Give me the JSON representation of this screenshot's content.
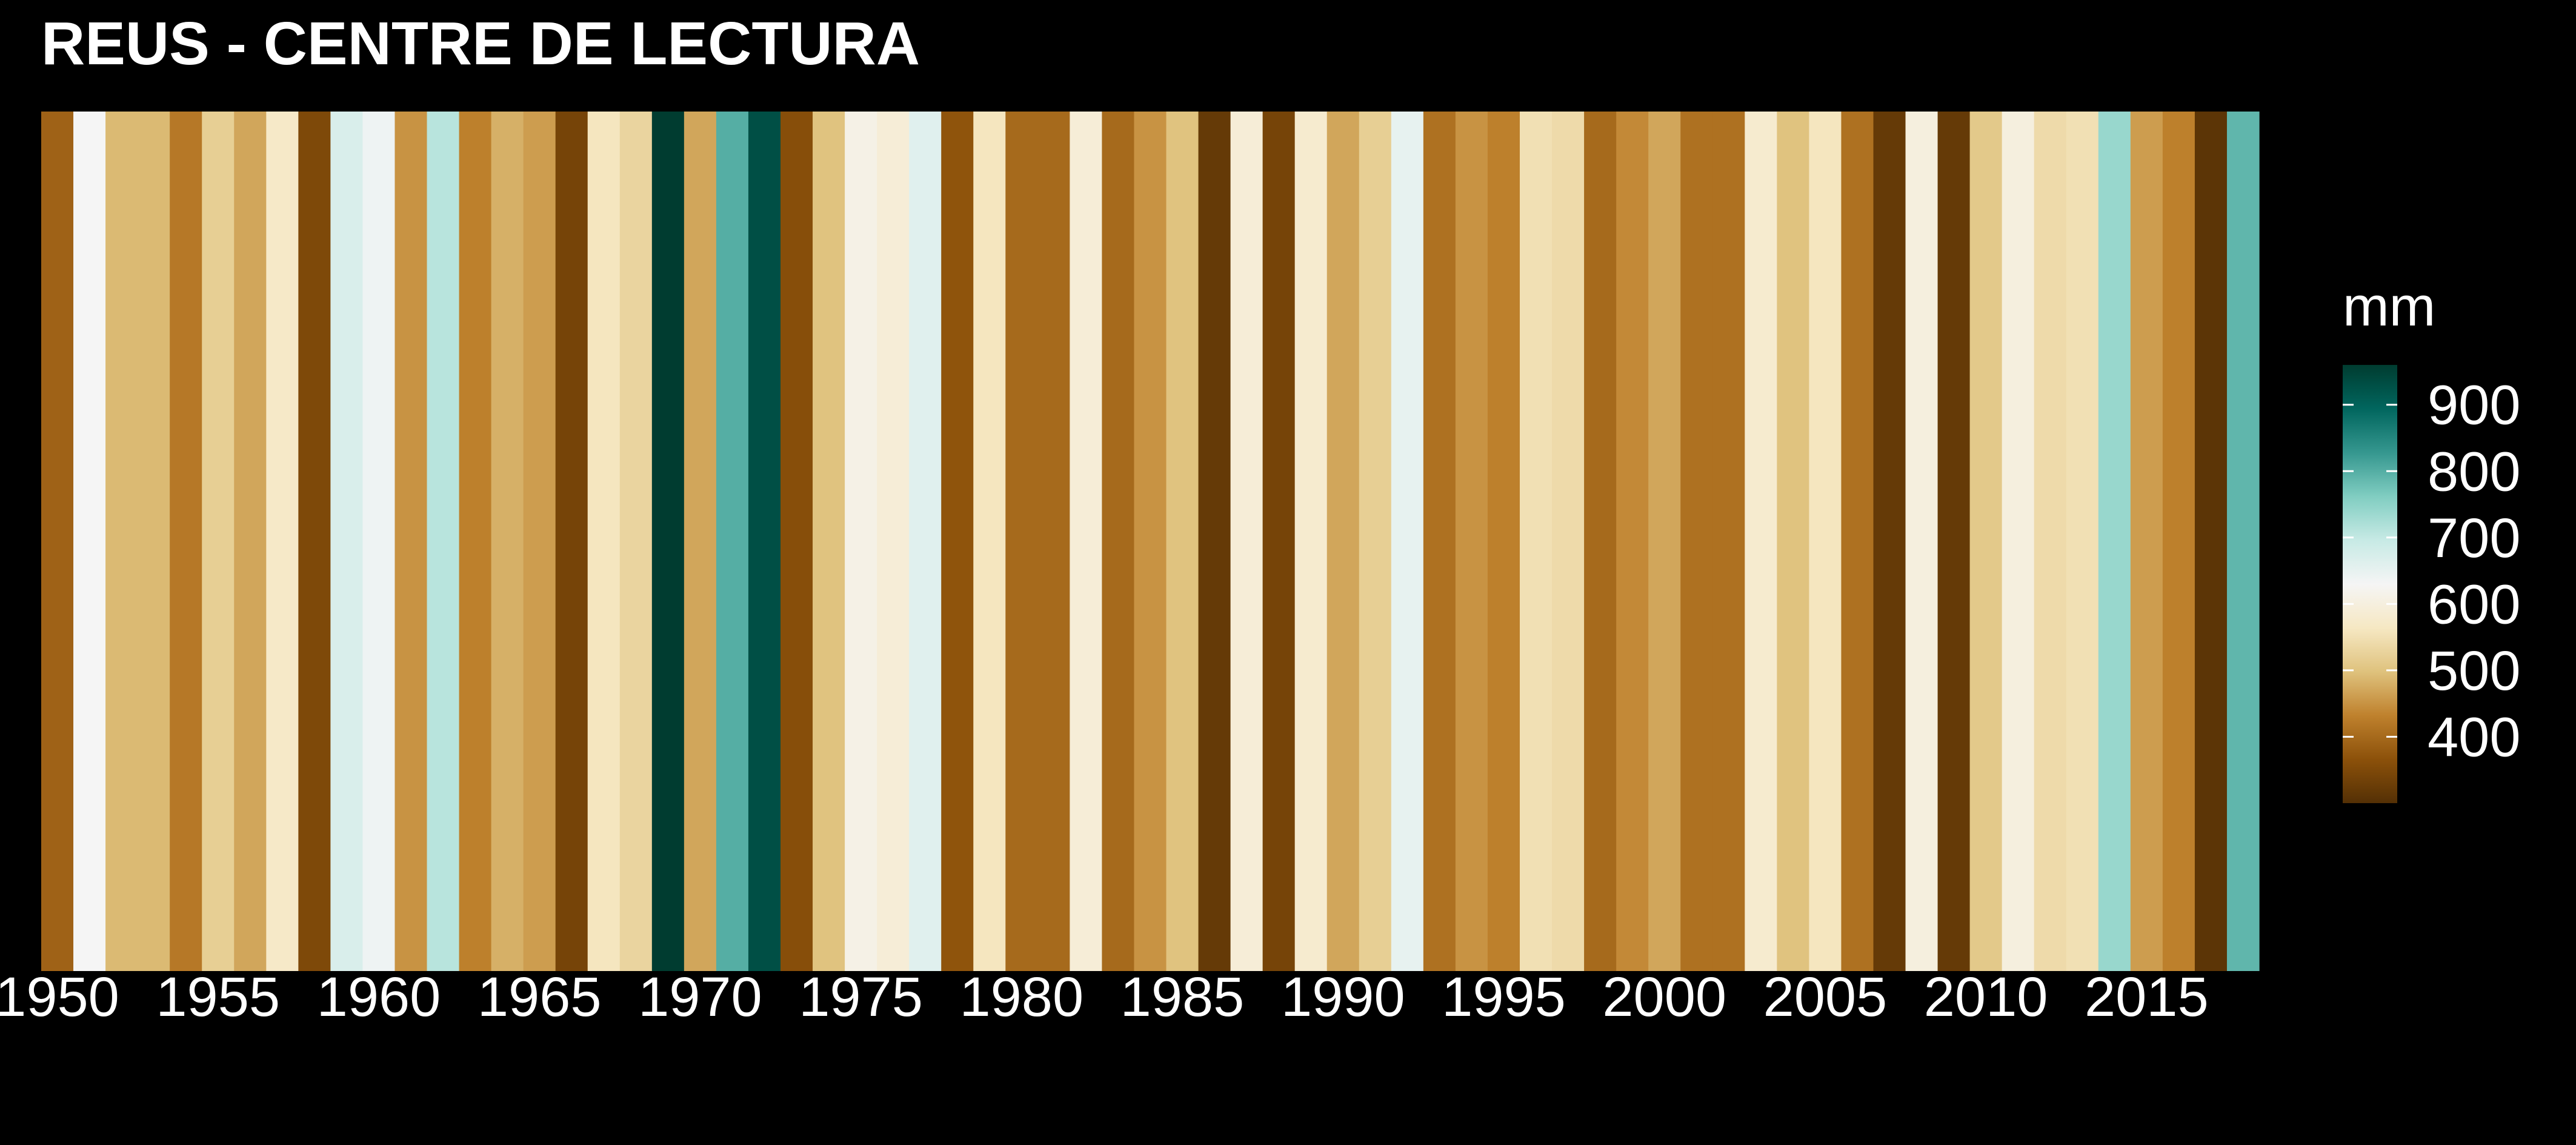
{
  "chart_data": {
    "type": "heatmap",
    "title": "REUS - CENTRE DE LECTURA",
    "xlabel": "",
    "ylabel": "",
    "x": [
      1950,
      1951,
      1952,
      1953,
      1954,
      1955,
      1956,
      1957,
      1958,
      1959,
      1960,
      1961,
      1962,
      1963,
      1964,
      1965,
      1966,
      1967,
      1968,
      1969,
      1970,
      1971,
      1972,
      1973,
      1974,
      1975,
      1976,
      1977,
      1978,
      1979,
      1980,
      1981,
      1982,
      1983,
      1984,
      1985,
      1986,
      1987,
      1988,
      1989,
      1990,
      1991,
      1992,
      1993,
      1994,
      1995,
      1996,
      1997,
      1998,
      1999,
      2000,
      2001,
      2002,
      2003,
      2004,
      2005,
      2006,
      2007,
      2008,
      2009,
      2010,
      2011,
      2012,
      2013,
      2014,
      2015,
      2016,
      2017,
      2018
    ],
    "values": [
      390,
      630,
      490,
      490,
      420,
      520,
      470,
      570,
      350,
      670,
      640,
      450,
      710,
      430,
      480,
      460,
      340,
      560,
      530,
      960,
      470,
      800,
      930,
      360,
      500,
      610,
      590,
      660,
      370,
      560,
      400,
      400,
      590,
      400,
      450,
      500,
      320,
      590,
      340,
      580,
      470,
      520,
      650,
      410,
      450,
      430,
      550,
      540,
      400,
      440,
      470,
      410,
      410,
      580,
      500,
      560,
      410,
      320,
      600,
      320,
      510,
      600,
      540,
      550,
      740,
      460,
      430,
      310,
      790
    ],
    "xticks": [
      "1950",
      "1955",
      "1960",
      "1965",
      "1970",
      "1975",
      "1980",
      "1985",
      "1990",
      "1995",
      "2000",
      "2005",
      "2010",
      "2015"
    ],
    "xlim": [
      1950,
      2018
    ],
    "legend": {
      "title": "mm",
      "ticks": [
        "400",
        "500",
        "600",
        "700",
        "800",
        "900"
      ],
      "range": [
        300,
        960
      ],
      "placement": "right"
    },
    "colors": {
      "background": "#000000",
      "text": "#ffffff",
      "palette": [
        "#543005",
        "#8c510a",
        "#bf812d",
        "#dfc27d",
        "#f6e8c3",
        "#f5f5f5",
        "#c7eae5",
        "#80cdc1",
        "#35978f",
        "#01665e",
        "#003c30"
      ]
    },
    "grid": false
  }
}
